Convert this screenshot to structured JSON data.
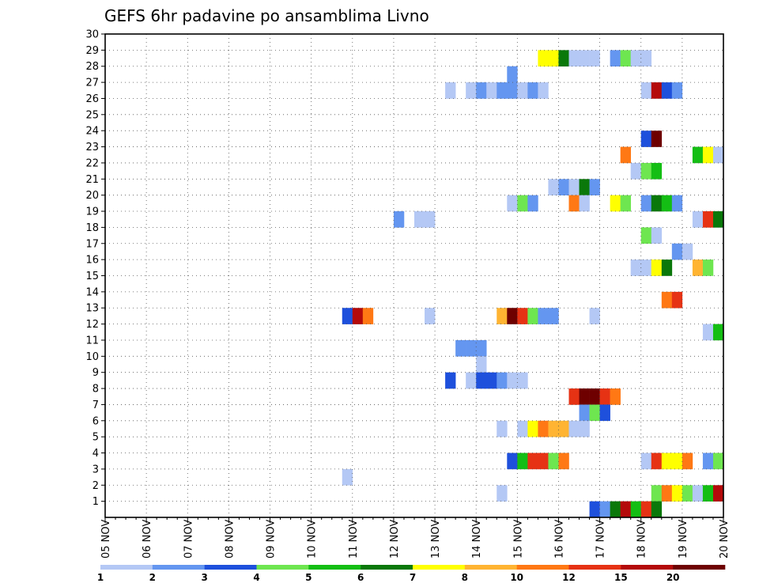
{
  "chart_data": {
    "type": "heatmap",
    "title": "GEFS 6hr padavine po ansamblima Livno",
    "xlabel": "",
    "ylabel": "",
    "x_ticks": [
      "05 NOV",
      "06 NOV",
      "07 NOV",
      "08 NOV",
      "09 NOV",
      "10 NOV",
      "11 NOV",
      "12 NOV",
      "13 NOV",
      "14 NOV",
      "15 NOV",
      "16 NOV",
      "17 NOV",
      "18 NOV",
      "19 NOV",
      "20 NOV"
    ],
    "y_ticks": [
      "1",
      "2",
      "3",
      "4",
      "5",
      "6",
      "7",
      "8",
      "9",
      "10",
      "11",
      "12",
      "13",
      "14",
      "15",
      "16",
      "17",
      "18",
      "19",
      "20",
      "21",
      "22",
      "23",
      "24",
      "25",
      "26",
      "27",
      "28",
      "29",
      "30"
    ],
    "x_axis": {
      "start": "05 NOV 00Z",
      "step_hours": 6,
      "steps": 60
    },
    "ylim": [
      0,
      30
    ],
    "grid": true,
    "colorbar": {
      "position": "bottom",
      "tick_labels": [
        "1",
        "2",
        "3",
        "4",
        "5",
        "6",
        "7",
        "8",
        "10",
        "12",
        "15",
        "20"
      ],
      "colors": [
        "#b4c8f5",
        "#6496f0",
        "#1e50dc",
        "#6ee650",
        "#14be14",
        "#0a780a",
        "#ffff00",
        "#ffb432",
        "#ff7814",
        "#e63214",
        "#b40a0a",
        "#6e0000"
      ]
    },
    "cells": [
      {
        "member": 29,
        "step": 43,
        "color": "#ffff00"
      },
      {
        "member": 29,
        "step": 44,
        "color": "#ffff00"
      },
      {
        "member": 29,
        "step": 45,
        "color": "#0a780a"
      },
      {
        "member": 29,
        "step": 46,
        "color": "#b4c8f5"
      },
      {
        "member": 29,
        "step": 47,
        "color": "#b4c8f5"
      },
      {
        "member": 29,
        "step": 48,
        "color": "#b4c8f5"
      },
      {
        "member": 29,
        "step": 50,
        "color": "#6496f0"
      },
      {
        "member": 29,
        "step": 51,
        "color": "#6ee650"
      },
      {
        "member": 29,
        "step": 52,
        "color": "#b4c8f5"
      },
      {
        "member": 29,
        "step": 53,
        "color": "#b4c8f5"
      },
      {
        "member": 28,
        "step": 40,
        "color": "#6496f0"
      },
      {
        "member": 27,
        "step": 34,
        "color": "#b4c8f5"
      },
      {
        "member": 27,
        "step": 36,
        "color": "#b4c8f5"
      },
      {
        "member": 27,
        "step": 37,
        "color": "#6496f0"
      },
      {
        "member": 27,
        "step": 38,
        "color": "#b4c8f5"
      },
      {
        "member": 27,
        "step": 39,
        "color": "#6496f0"
      },
      {
        "member": 27,
        "step": 40,
        "color": "#6496f0"
      },
      {
        "member": 27,
        "step": 41,
        "color": "#b4c8f5"
      },
      {
        "member": 27,
        "step": 42,
        "color": "#6496f0"
      },
      {
        "member": 27,
        "step": 43,
        "color": "#b4c8f5"
      },
      {
        "member": 27,
        "step": 53,
        "color": "#b4c8f5"
      },
      {
        "member": 27,
        "step": 54,
        "color": "#b40a0a"
      },
      {
        "member": 27,
        "step": 55,
        "color": "#1e50dc"
      },
      {
        "member": 27,
        "step": 56,
        "color": "#6496f0"
      },
      {
        "member": 24,
        "step": 53,
        "color": "#1e50dc"
      },
      {
        "member": 24,
        "step": 54,
        "color": "#6e0000"
      },
      {
        "member": 23,
        "step": 51,
        "color": "#ff7814"
      },
      {
        "member": 23,
        "step": 58,
        "color": "#14be14"
      },
      {
        "member": 23,
        "step": 59,
        "color": "#ffff00"
      },
      {
        "member": 23,
        "step": 60,
        "color": "#b4c8f5"
      },
      {
        "member": 22,
        "step": 52,
        "color": "#b4c8f5"
      },
      {
        "member": 22,
        "step": 53,
        "color": "#6ee650"
      },
      {
        "member": 22,
        "step": 54,
        "color": "#14be14"
      },
      {
        "member": 21,
        "step": 44,
        "color": "#b4c8f5"
      },
      {
        "member": 21,
        "step": 45,
        "color": "#6496f0"
      },
      {
        "member": 21,
        "step": 46,
        "color": "#b4c8f5"
      },
      {
        "member": 21,
        "step": 47,
        "color": "#0a780a"
      },
      {
        "member": 21,
        "step": 48,
        "color": "#6496f0"
      },
      {
        "member": 20,
        "step": 40,
        "color": "#b4c8f5"
      },
      {
        "member": 20,
        "step": 41,
        "color": "#6ee650"
      },
      {
        "member": 20,
        "step": 42,
        "color": "#6496f0"
      },
      {
        "member": 20,
        "step": 46,
        "color": "#ff7814"
      },
      {
        "member": 20,
        "step": 47,
        "color": "#b4c8f5"
      },
      {
        "member": 20,
        "step": 50,
        "color": "#ffff00"
      },
      {
        "member": 20,
        "step": 51,
        "color": "#6ee650"
      },
      {
        "member": 20,
        "step": 53,
        "color": "#6496f0"
      },
      {
        "member": 20,
        "step": 54,
        "color": "#0a780a"
      },
      {
        "member": 20,
        "step": 55,
        "color": "#14be14"
      },
      {
        "member": 20,
        "step": 56,
        "color": "#6496f0"
      },
      {
        "member": 19,
        "step": 29,
        "color": "#6496f0"
      },
      {
        "member": 19,
        "step": 31,
        "color": "#b4c8f5"
      },
      {
        "member": 19,
        "step": 32,
        "color": "#b4c8f5"
      },
      {
        "member": 19,
        "step": 58,
        "color": "#b4c8f5"
      },
      {
        "member": 19,
        "step": 59,
        "color": "#e63214"
      },
      {
        "member": 19,
        "step": 60,
        "color": "#0a780a"
      },
      {
        "member": 18,
        "step": 53,
        "color": "#6ee650"
      },
      {
        "member": 18,
        "step": 54,
        "color": "#b4c8f5"
      },
      {
        "member": 17,
        "step": 56,
        "color": "#6496f0"
      },
      {
        "member": 17,
        "step": 57,
        "color": "#b4c8f5"
      },
      {
        "member": 16,
        "step": 52,
        "color": "#b4c8f5"
      },
      {
        "member": 16,
        "step": 53,
        "color": "#b4c8f5"
      },
      {
        "member": 16,
        "step": 54,
        "color": "#ffff00"
      },
      {
        "member": 16,
        "step": 55,
        "color": "#0a780a"
      },
      {
        "member": 16,
        "step": 58,
        "color": "#ffb432"
      },
      {
        "member": 16,
        "step": 59,
        "color": "#6ee650"
      },
      {
        "member": 14,
        "step": 55,
        "color": "#ff7814"
      },
      {
        "member": 14,
        "step": 56,
        "color": "#e63214"
      },
      {
        "member": 13,
        "step": 24,
        "color": "#1e50dc"
      },
      {
        "member": 13,
        "step": 25,
        "color": "#b40a0a"
      },
      {
        "member": 13,
        "step": 26,
        "color": "#ff7814"
      },
      {
        "member": 13,
        "step": 32,
        "color": "#b4c8f5"
      },
      {
        "member": 13,
        "step": 39,
        "color": "#ffb432"
      },
      {
        "member": 13,
        "step": 40,
        "color": "#6e0000"
      },
      {
        "member": 13,
        "step": 41,
        "color": "#e63214"
      },
      {
        "member": 13,
        "step": 42,
        "color": "#6ee650"
      },
      {
        "member": 13,
        "step": 43,
        "color": "#6496f0"
      },
      {
        "member": 13,
        "step": 44,
        "color": "#6496f0"
      },
      {
        "member": 13,
        "step": 48,
        "color": "#b4c8f5"
      },
      {
        "member": 12,
        "step": 59,
        "color": "#b4c8f5"
      },
      {
        "member": 12,
        "step": 60,
        "color": "#14be14"
      },
      {
        "member": 11,
        "step": 35,
        "color": "#6496f0"
      },
      {
        "member": 11,
        "step": 36,
        "color": "#6496f0"
      },
      {
        "member": 11,
        "step": 37,
        "color": "#6496f0"
      },
      {
        "member": 10,
        "step": 37,
        "color": "#b4c8f5"
      },
      {
        "member": 9,
        "step": 34,
        "color": "#1e50dc"
      },
      {
        "member": 9,
        "step": 36,
        "color": "#b4c8f5"
      },
      {
        "member": 9,
        "step": 37,
        "color": "#1e50dc"
      },
      {
        "member": 9,
        "step": 38,
        "color": "#1e50dc"
      },
      {
        "member": 9,
        "step": 39,
        "color": "#6496f0"
      },
      {
        "member": 9,
        "step": 40,
        "color": "#b4c8f5"
      },
      {
        "member": 9,
        "step": 41,
        "color": "#b4c8f5"
      },
      {
        "member": 8,
        "step": 46,
        "color": "#e63214"
      },
      {
        "member": 8,
        "step": 47,
        "color": "#6e0000"
      },
      {
        "member": 8,
        "step": 48,
        "color": "#6e0000"
      },
      {
        "member": 8,
        "step": 49,
        "color": "#e63214"
      },
      {
        "member": 8,
        "step": 50,
        "color": "#ff7814"
      },
      {
        "member": 7,
        "step": 47,
        "color": "#6496f0"
      },
      {
        "member": 7,
        "step": 48,
        "color": "#6ee650"
      },
      {
        "member": 7,
        "step": 49,
        "color": "#1e50dc"
      },
      {
        "member": 6,
        "step": 39,
        "color": "#b4c8f5"
      },
      {
        "member": 6,
        "step": 41,
        "color": "#b4c8f5"
      },
      {
        "member": 6,
        "step": 42,
        "color": "#ffff00"
      },
      {
        "member": 6,
        "step": 43,
        "color": "#ff7814"
      },
      {
        "member": 6,
        "step": 44,
        "color": "#ffb432"
      },
      {
        "member": 6,
        "step": 45,
        "color": "#ffb432"
      },
      {
        "member": 6,
        "step": 46,
        "color": "#b4c8f5"
      },
      {
        "member": 6,
        "step": 47,
        "color": "#b4c8f5"
      },
      {
        "member": 4,
        "step": 40,
        "color": "#1e50dc"
      },
      {
        "member": 4,
        "step": 41,
        "color": "#14be14"
      },
      {
        "member": 4,
        "step": 42,
        "color": "#e63214"
      },
      {
        "member": 4,
        "step": 43,
        "color": "#e63214"
      },
      {
        "member": 4,
        "step": 44,
        "color": "#6ee650"
      },
      {
        "member": 4,
        "step": 45,
        "color": "#ff7814"
      },
      {
        "member": 4,
        "step": 53,
        "color": "#b4c8f5"
      },
      {
        "member": 4,
        "step": 54,
        "color": "#e63214"
      },
      {
        "member": 4,
        "step": 55,
        "color": "#ffff00"
      },
      {
        "member": 4,
        "step": 56,
        "color": "#ffff00"
      },
      {
        "member": 4,
        "step": 57,
        "color": "#ff7814"
      },
      {
        "member": 4,
        "step": 59,
        "color": "#6496f0"
      },
      {
        "member": 4,
        "step": 60,
        "color": "#6ee650"
      },
      {
        "member": 3,
        "step": 24,
        "color": "#b4c8f5"
      },
      {
        "member": 2,
        "step": 39,
        "color": "#b4c8f5"
      },
      {
        "member": 2,
        "step": 54,
        "color": "#6ee650"
      },
      {
        "member": 2,
        "step": 55,
        "color": "#ff7814"
      },
      {
        "member": 2,
        "step": 56,
        "color": "#ffff00"
      },
      {
        "member": 2,
        "step": 57,
        "color": "#6ee650"
      },
      {
        "member": 2,
        "step": 58,
        "color": "#b4c8f5"
      },
      {
        "member": 2,
        "step": 59,
        "color": "#14be14"
      },
      {
        "member": 2,
        "step": 60,
        "color": "#b40a0a"
      },
      {
        "member": 1,
        "step": 48,
        "color": "#1e50dc"
      },
      {
        "member": 1,
        "step": 49,
        "color": "#6496f0"
      },
      {
        "member": 1,
        "step": 50,
        "color": "#0a780a"
      },
      {
        "member": 1,
        "step": 51,
        "color": "#b40a0a"
      },
      {
        "member": 1,
        "step": 52,
        "color": "#14be14"
      },
      {
        "member": 1,
        "step": 53,
        "color": "#e63214"
      },
      {
        "member": 1,
        "step": 54,
        "color": "#0a780a"
      }
    ]
  }
}
